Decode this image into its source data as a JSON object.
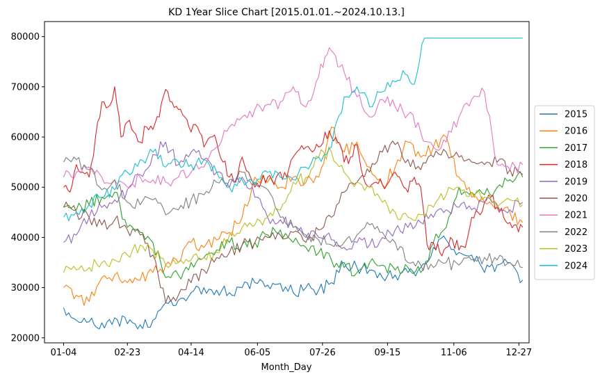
{
  "chart_data": {
    "type": "line",
    "title": "KD 1Year Slice Chart [2015.01.01.~2024.10.13.]",
    "xlabel": "Month_Day",
    "ylabel": "",
    "xlim": [
      -15,
      365
    ],
    "ylim": [
      19000,
      83000
    ],
    "x_ticks": [
      {
        "day": 0,
        "label": "01-04"
      },
      {
        "day": 50,
        "label": "02-23"
      },
      {
        "day": 100,
        "label": "04-14"
      },
      {
        "day": 152,
        "label": "06-05"
      },
      {
        "day": 203,
        "label": "07-26"
      },
      {
        "day": 254,
        "label": "09-15"
      },
      {
        "day": 306,
        "label": "11-06"
      },
      {
        "day": 357,
        "label": "12-27"
      }
    ],
    "y_ticks": [
      20000,
      30000,
      40000,
      50000,
      60000,
      70000,
      80000
    ],
    "y_tick_labels": [
      "20000",
      "30000",
      "40000",
      "50000",
      "60000",
      "70000",
      "80000"
    ],
    "legend_position": "right",
    "grid": false,
    "series": [
      {
        "name": "2015",
        "color": "#1f77b4",
        "x": [
          0,
          10,
          20,
          30,
          40,
          50,
          60,
          70,
          80,
          90,
          100,
          110,
          120,
          130,
          140,
          150,
          160,
          170,
          180,
          190,
          200,
          210,
          220,
          230,
          240,
          250,
          260,
          270,
          280,
          290,
          300,
          310,
          320,
          330,
          340,
          350,
          360
        ],
        "y": [
          26000,
          23500,
          23200,
          23000,
          24000,
          22800,
          22600,
          23500,
          27000,
          27500,
          29000,
          30000,
          29500,
          29000,
          30000,
          31000,
          30500,
          30800,
          29000,
          30000,
          29500,
          31000,
          35000,
          34000,
          33500,
          32000,
          32500,
          33000,
          34000,
          38000,
          39500,
          37000,
          36500,
          33000,
          34500,
          35000,
          31500
        ]
      },
      {
        "name": "2016",
        "color": "#ff7f0e",
        "x": [
          0,
          10,
          20,
          30,
          40,
          50,
          60,
          70,
          80,
          90,
          100,
          110,
          120,
          130,
          140,
          150,
          160,
          170,
          180,
          190,
          200,
          210,
          220,
          230,
          240,
          250,
          260,
          270,
          280,
          290,
          300,
          310,
          320,
          330,
          340,
          350,
          360
        ],
        "y": [
          30000,
          28500,
          27200,
          32000,
          32500,
          31000,
          31500,
          33000,
          34500,
          35000,
          39000,
          38000,
          39500,
          41000,
          44000,
          52000,
          51000,
          50000,
          52000,
          51000,
          52000,
          62000,
          57000,
          59000,
          54000,
          50500,
          54000,
          59000,
          56000,
          58000,
          60000,
          52000,
          48000,
          47000,
          46000,
          45000,
          43000
        ]
      },
      {
        "name": "2017",
        "color": "#2ca02c",
        "x": [
          0,
          10,
          20,
          30,
          40,
          50,
          60,
          70,
          80,
          90,
          100,
          110,
          120,
          130,
          140,
          150,
          160,
          170,
          180,
          190,
          200,
          210,
          220,
          230,
          240,
          250,
          260,
          270,
          280,
          290,
          300,
          310,
          320,
          330,
          340,
          350,
          360
        ],
        "y": [
          46000,
          45500,
          46500,
          48000,
          49000,
          42000,
          41000,
          39000,
          32000,
          32500,
          35000,
          36000,
          37500,
          39000,
          38500,
          39000,
          40500,
          41500,
          39000,
          38000,
          37000,
          35500,
          34000,
          33000,
          35000,
          34500,
          33500,
          34000,
          33000,
          39000,
          42000,
          50000,
          49000,
          48500,
          50000,
          51500,
          52000
        ]
      },
      {
        "name": "2018",
        "color": "#d62728",
        "x": [
          0,
          5,
          10,
          15,
          20,
          25,
          30,
          35,
          40,
          45,
          50,
          55,
          60,
          65,
          70,
          75,
          80,
          85,
          90,
          95,
          100,
          105,
          110,
          115,
          120,
          125,
          130,
          135,
          140,
          145,
          150,
          155,
          160,
          165,
          170,
          175,
          180,
          185,
          190,
          195,
          200,
          205,
          210,
          215,
          220,
          225,
          230,
          235,
          240,
          245,
          250,
          255,
          260,
          265,
          270,
          275,
          280,
          285,
          290,
          295,
          300,
          305,
          310,
          315,
          320,
          325,
          330,
          335,
          340,
          345,
          350,
          355,
          360
        ],
        "y": [
          50000,
          49000,
          54500,
          53000,
          52000,
          60000,
          67000,
          66000,
          70000,
          60000,
          63000,
          61000,
          59000,
          62000,
          61500,
          64000,
          69500,
          67000,
          65500,
          64000,
          61000,
          62000,
          58000,
          60000,
          59000,
          55000,
          52000,
          51000,
          56000,
          53000,
          50000,
          51000,
          52000,
          50500,
          53000,
          52000,
          56000,
          57500,
          58000,
          57000,
          58000,
          61000,
          60000,
          59000,
          55000,
          56000,
          58500,
          52000,
          50000,
          51000,
          50500,
          51000,
          53000,
          51000,
          49000,
          52000,
          50000,
          38500,
          39000,
          37000,
          38000,
          39500,
          37500,
          38000,
          44000,
          45000,
          47000,
          48000,
          46000,
          44000,
          43000,
          42500,
          42000
        ]
      },
      {
        "name": "2019",
        "color": "#9467bd",
        "x": [
          0,
          10,
          20,
          30,
          40,
          50,
          60,
          70,
          80,
          90,
          100,
          110,
          120,
          130,
          140,
          150,
          160,
          170,
          180,
          190,
          200,
          210,
          220,
          230,
          240,
          250,
          260,
          270,
          280,
          290,
          300,
          310,
          320,
          330,
          340,
          350,
          360
        ],
        "y": [
          39000,
          40500,
          44000,
          46000,
          47500,
          49500,
          52500,
          56500,
          59000,
          54500,
          57000,
          55500,
          53000,
          50000,
          52000,
          48000,
          44000,
          43500,
          42000,
          40500,
          40000,
          39500,
          38000,
          39000,
          38500,
          40000,
          41500,
          42000,
          43000,
          44000,
          45500,
          46000,
          45500,
          47000,
          46500,
          45500,
          47000
        ]
      },
      {
        "name": "2020",
        "color": "#8c564b",
        "x": [
          0,
          10,
          20,
          30,
          40,
          50,
          60,
          70,
          80,
          90,
          100,
          110,
          120,
          130,
          140,
          150,
          160,
          170,
          180,
          190,
          200,
          210,
          220,
          230,
          240,
          250,
          260,
          270,
          280,
          290,
          300,
          310,
          320,
          330,
          340,
          350,
          360
        ],
        "y": [
          46000,
          45000,
          44000,
          42500,
          43500,
          41500,
          40500,
          36500,
          27000,
          28500,
          31000,
          33500,
          36000,
          37000,
          38500,
          39000,
          40000,
          40500,
          41000,
          39000,
          41500,
          44000,
          49000,
          51000,
          53000,
          57000,
          58500,
          55500,
          53500,
          56000,
          57000,
          56000,
          55000,
          54500,
          55000,
          53500,
          52500
        ]
      },
      {
        "name": "2021",
        "color": "#e377c2",
        "x": [
          0,
          10,
          20,
          30,
          40,
          50,
          60,
          70,
          80,
          90,
          100,
          110,
          120,
          130,
          140,
          150,
          160,
          170,
          180,
          190,
          200,
          205,
          210,
          215,
          220,
          230,
          240,
          250,
          260,
          270,
          280,
          290,
          300,
          310,
          320,
          330,
          340,
          350,
          360
        ],
        "y": [
          52000,
          53000,
          54000,
          52000,
          51500,
          50000,
          52000,
          51500,
          51000,
          52000,
          53000,
          54000,
          58000,
          62000,
          64000,
          65500,
          66500,
          67000,
          70000,
          66000,
          72000,
          76000,
          77200,
          74000,
          73000,
          68000,
          64000,
          67500,
          66000,
          64500,
          61000,
          58000,
          59000,
          64000,
          67500,
          69000,
          54500,
          53500,
          54500
        ]
      },
      {
        "name": "2022",
        "color": "#7f7f7f",
        "x": [
          0,
          10,
          20,
          30,
          40,
          50,
          60,
          70,
          80,
          90,
          100,
          110,
          120,
          130,
          140,
          150,
          160,
          170,
          180,
          190,
          200,
          210,
          220,
          230,
          240,
          250,
          260,
          270,
          280,
          290,
          300,
          310,
          320,
          330,
          340,
          350,
          360
        ],
        "y": [
          55000,
          55500,
          53500,
          49500,
          51500,
          47000,
          46500,
          47500,
          44500,
          45500,
          47500,
          48500,
          51000,
          51500,
          53000,
          51000,
          49500,
          44000,
          42000,
          40000,
          39500,
          38500,
          39000,
          40500,
          42500,
          41000,
          39000,
          35000,
          34500,
          34000,
          35000,
          34500,
          35500,
          36000,
          35500,
          35000,
          34000
        ]
      },
      {
        "name": "2023",
        "color": "#bcbd22",
        "x": [
          0,
          10,
          20,
          30,
          40,
          50,
          60,
          70,
          80,
          90,
          100,
          110,
          120,
          130,
          140,
          150,
          160,
          170,
          180,
          190,
          200,
          210,
          220,
          230,
          240,
          250,
          260,
          270,
          280,
          290,
          300,
          310,
          320,
          330,
          340,
          350,
          360
        ],
        "y": [
          33000,
          33500,
          34000,
          35000,
          35500,
          36500,
          38500,
          37500,
          34500,
          35000,
          35500,
          36000,
          37000,
          40500,
          42000,
          42500,
          44000,
          45500,
          51000,
          52000,
          56000,
          57000,
          53000,
          51000,
          50000,
          47000,
          45000,
          44000,
          44500,
          46000,
          48500,
          50000,
          49000,
          48000,
          46000,
          47500,
          46500
        ]
      },
      {
        "name": "2024",
        "color": "#17becf",
        "x": [
          0,
          10,
          20,
          30,
          40,
          50,
          60,
          70,
          80,
          90,
          100,
          110,
          120,
          130,
          140,
          150,
          160,
          170,
          180,
          190,
          200,
          210,
          220,
          230,
          240,
          250,
          260,
          268,
          275,
          283,
          290,
          300,
          310,
          320,
          330,
          340,
          350,
          360
        ],
        "y": [
          44000,
          45000,
          46500,
          48000,
          49500,
          53000,
          55500,
          57000,
          54000,
          55000,
          54500,
          55500,
          53000,
          50000,
          51500,
          50500,
          53000,
          52000,
          51500,
          54000,
          56000,
          58000,
          68000,
          70000,
          66000,
          69000,
          71000,
          72500,
          70500,
          79700,
          79700,
          79700,
          79700,
          79700,
          79700,
          79700,
          79700,
          79700
        ]
      }
    ]
  }
}
